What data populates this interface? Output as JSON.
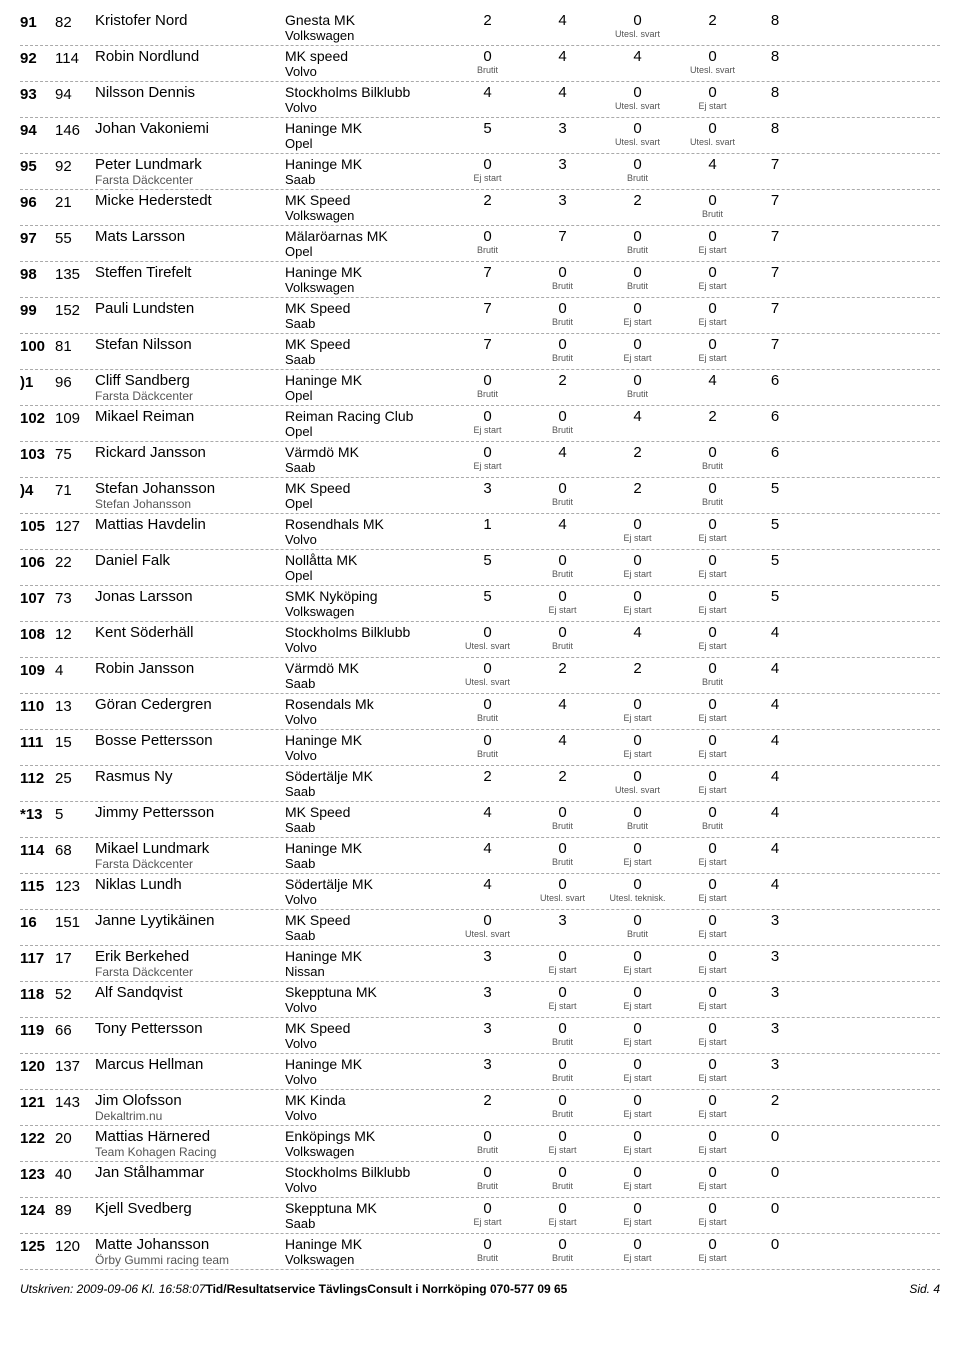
{
  "rows": [
    {
      "rank": "91",
      "num": "82",
      "name": "Kristofer Nord",
      "sub": "",
      "club": "Gnesta MK",
      "vehicle": "Volkswagen",
      "s1": "2",
      "n1": "",
      "s2": "4",
      "n2": "",
      "s3": "0",
      "n3": "Utesl. svart",
      "s4": "2",
      "n4": "",
      "total": "8"
    },
    {
      "rank": "92",
      "num": "114",
      "name": "Robin Nordlund",
      "sub": "",
      "club": "MK speed",
      "vehicle": "Volvo",
      "s1": "0",
      "n1": "Brutit",
      "s2": "4",
      "n2": "",
      "s3": "4",
      "n3": "",
      "s4": "0",
      "n4": "Utesl. svart",
      "total": "8"
    },
    {
      "rank": "93",
      "num": "94",
      "name": "Nilsson Dennis",
      "sub": "",
      "club": "Stockholms Bilklubb",
      "vehicle": "Volvo",
      "s1": "4",
      "n1": "",
      "s2": "4",
      "n2": "",
      "s3": "0",
      "n3": "Utesl. svart",
      "s4": "0",
      "n4": "Ej start",
      "total": "8"
    },
    {
      "rank": "94",
      "num": "146",
      "name": "Johan Vakoniemi",
      "sub": "",
      "club": "Haninge MK",
      "vehicle": "Opel",
      "s1": "5",
      "n1": "",
      "s2": "3",
      "n2": "",
      "s3": "0",
      "n3": "Utesl. svart",
      "s4": "0",
      "n4": "Utesl. svart",
      "total": "8"
    },
    {
      "rank": "95",
      "num": "92",
      "name": "Peter Lundmark",
      "sub": "Farsta Däckcenter",
      "club": "Haninge MK",
      "vehicle": "Saab",
      "s1": "0",
      "n1": "Ej start",
      "s2": "3",
      "n2": "",
      "s3": "0",
      "n3": "Brutit",
      "s4": "4",
      "n4": "",
      "total": "7"
    },
    {
      "rank": "96",
      "num": "21",
      "name": "Micke Hederstedt",
      "sub": "",
      "club": "MK Speed",
      "vehicle": "Volkswagen",
      "s1": "2",
      "n1": "",
      "s2": "3",
      "n2": "",
      "s3": "2",
      "n3": "",
      "s4": "0",
      "n4": "Brutit",
      "total": "7"
    },
    {
      "rank": "97",
      "num": "55",
      "name": "Mats Larsson",
      "sub": "",
      "club": "Mälaröarnas MK",
      "vehicle": "Opel",
      "s1": "0",
      "n1": "Brutit",
      "s2": "7",
      "n2": "",
      "s3": "0",
      "n3": "Brutit",
      "s4": "0",
      "n4": "Ej start",
      "total": "7"
    },
    {
      "rank": "98",
      "num": "135",
      "name": "Steffen Tirefelt",
      "sub": "",
      "club": "Haninge MK",
      "vehicle": "Volkswagen",
      "s1": "7",
      "n1": "",
      "s2": "0",
      "n2": "Brutit",
      "s3": "0",
      "n3": "Brutit",
      "s4": "0",
      "n4": "Ej start",
      "total": "7"
    },
    {
      "rank": "99",
      "num": "152",
      "name": "Pauli Lundsten",
      "sub": "",
      "club": "MK Speed",
      "vehicle": "Saab",
      "s1": "7",
      "n1": "",
      "s2": "0",
      "n2": "Brutit",
      "s3": "0",
      "n3": "Ej start",
      "s4": "0",
      "n4": "Ej start",
      "total": "7"
    },
    {
      "rank": "100",
      "num": "81",
      "name": "Stefan Nilsson",
      "sub": "",
      "club": "MK Speed",
      "vehicle": "Saab",
      "s1": "7",
      "n1": "",
      "s2": "0",
      "n2": "Brutit",
      "s3": "0",
      "n3": "Ej start",
      "s4": "0",
      "n4": "Ej start",
      "total": "7"
    },
    {
      "rank": ")1",
      "num": "96",
      "name": "Cliff Sandberg",
      "sub": "Farsta Däckcenter",
      "club": "Haninge MK",
      "vehicle": "Opel",
      "s1": "0",
      "n1": "Brutit",
      "s2": "2",
      "n2": "",
      "s3": "0",
      "n3": "Brutit",
      "s4": "4",
      "n4": "",
      "total": "6"
    },
    {
      "rank": "102",
      "num": "109",
      "name": "Mikael Reiman",
      "sub": "",
      "club": "Reiman Racing Club",
      "vehicle": "Opel",
      "s1": "0",
      "n1": "Ej start",
      "s2": "0",
      "n2": "Brutit",
      "s3": "4",
      "n3": "",
      "s4": "2",
      "n4": "",
      "total": "6"
    },
    {
      "rank": "103",
      "num": "75",
      "name": "Rickard Jansson",
      "sub": "",
      "club": "Värmdö MK",
      "vehicle": "Saab",
      "s1": "0",
      "n1": "Ej start",
      "s2": "4",
      "n2": "",
      "s3": "2",
      "n3": "",
      "s4": "0",
      "n4": "Brutit",
      "total": "6"
    },
    {
      "rank": ")4",
      "num": "71",
      "name": "Stefan Johansson",
      "sub": "Stefan Johansson",
      "club": "MK Speed",
      "vehicle": "Opel",
      "s1": "3",
      "n1": "",
      "s2": "0",
      "n2": "Brutit",
      "s3": "2",
      "n3": "",
      "s4": "0",
      "n4": "Brutit",
      "total": "5"
    },
    {
      "rank": "105",
      "num": "127",
      "name": "Mattias Havdelin",
      "sub": "",
      "club": "Rosendhals MK",
      "vehicle": "Volvo",
      "s1": "1",
      "n1": "",
      "s2": "4",
      "n2": "",
      "s3": "0",
      "n3": "Ej start",
      "s4": "0",
      "n4": "Ej start",
      "total": "5"
    },
    {
      "rank": "106",
      "num": "22",
      "name": "Daniel Falk",
      "sub": "",
      "club": "Nollåtta MK",
      "vehicle": "Opel",
      "s1": "5",
      "n1": "",
      "s2": "0",
      "n2": "Brutit",
      "s3": "0",
      "n3": "Ej start",
      "s4": "0",
      "n4": "Ej start",
      "total": "5"
    },
    {
      "rank": "107",
      "num": "73",
      "name": "Jonas Larsson",
      "sub": "",
      "club": "SMK Nyköping",
      "vehicle": "Volkswagen",
      "s1": "5",
      "n1": "",
      "s2": "0",
      "n2": "Ej start",
      "s3": "0",
      "n3": "Ej start",
      "s4": "0",
      "n4": "Ej start",
      "total": "5"
    },
    {
      "rank": "108",
      "num": "12",
      "name": "Kent Söderhäll",
      "sub": "",
      "club": "Stockholms Bilklubb",
      "vehicle": "Volvo",
      "s1": "0",
      "n1": "Utesl. svart",
      "s2": "0",
      "n2": "Brutit",
      "s3": "4",
      "n3": "",
      "s4": "0",
      "n4": "Ej start",
      "total": "4"
    },
    {
      "rank": "109",
      "num": "4",
      "name": "Robin Jansson",
      "sub": "",
      "club": "Värmdö MK",
      "vehicle": "Saab",
      "s1": "0",
      "n1": "Utesl. svart",
      "s2": "2",
      "n2": "",
      "s3": "2",
      "n3": "",
      "s4": "0",
      "n4": "Brutit",
      "total": "4"
    },
    {
      "rank": "110",
      "num": "13",
      "name": "Göran Cedergren",
      "sub": "",
      "club": "Rosendals Mk",
      "vehicle": "Volvo",
      "s1": "0",
      "n1": "Brutit",
      "s2": "4",
      "n2": "",
      "s3": "0",
      "n3": "Ej start",
      "s4": "0",
      "n4": "Ej start",
      "total": "4"
    },
    {
      "rank": "111",
      "num": "15",
      "name": "Bosse Pettersson",
      "sub": "",
      "club": "Haninge MK",
      "vehicle": "Volvo",
      "s1": "0",
      "n1": "Brutit",
      "s2": "4",
      "n2": "",
      "s3": "0",
      "n3": "Ej start",
      "s4": "0",
      "n4": "Ej start",
      "total": "4"
    },
    {
      "rank": "112",
      "num": "25",
      "name": "Rasmus Ny",
      "sub": "",
      "club": "Södertälje MK",
      "vehicle": "Saab",
      "s1": "2",
      "n1": "",
      "s2": "2",
      "n2": "",
      "s3": "0",
      "n3": "Utesl. svart",
      "s4": "0",
      "n4": "Ej start",
      "total": "4"
    },
    {
      "rank": "*13",
      "num": "5",
      "name": "Jimmy Pettersson",
      "sub": "",
      "club": "MK Speed",
      "vehicle": "Saab",
      "s1": "4",
      "n1": "",
      "s2": "0",
      "n2": "Brutit",
      "s3": "0",
      "n3": "Brutit",
      "s4": "0",
      "n4": "Brutit",
      "total": "4"
    },
    {
      "rank": "114",
      "num": "68",
      "name": "Mikael Lundmark",
      "sub": "Farsta Däckcenter",
      "club": "Haninge MK",
      "vehicle": "Saab",
      "s1": "4",
      "n1": "",
      "s2": "0",
      "n2": "Brutit",
      "s3": "0",
      "n3": "Ej start",
      "s4": "0",
      "n4": "Ej start",
      "total": "4"
    },
    {
      "rank": "115",
      "num": "123",
      "name": "Niklas Lundh",
      "sub": "",
      "club": "Södertälje MK",
      "vehicle": "Volvo",
      "s1": "4",
      "n1": "",
      "s2": "0",
      "n2": "Utesl. svart",
      "s3": "0",
      "n3": "Utesl. teknisk.",
      "s4": "0",
      "n4": "Ej start",
      "total": "4"
    },
    {
      "rank": "16",
      "num": "151",
      "name": "Janne Lyytikäinen",
      "sub": "",
      "club": "MK Speed",
      "vehicle": "Saab",
      "s1": "0",
      "n1": "Utesl. svart",
      "s2": "3",
      "n2": "",
      "s3": "0",
      "n3": "Brutit",
      "s4": "0",
      "n4": "Ej start",
      "total": "3"
    },
    {
      "rank": "117",
      "num": "17",
      "name": "Erik Berkehed",
      "sub": "Farsta Däckcenter",
      "club": "Haninge MK",
      "vehicle": "Nissan",
      "s1": "3",
      "n1": "",
      "s2": "0",
      "n2": "Ej start",
      "s3": "0",
      "n3": "Ej start",
      "s4": "0",
      "n4": "Ej start",
      "total": "3"
    },
    {
      "rank": "118",
      "num": "52",
      "name": "Alf Sandqvist",
      "sub": "",
      "club": "Skepptuna MK",
      "vehicle": "Volvo",
      "s1": "3",
      "n1": "",
      "s2": "0",
      "n2": "Ej start",
      "s3": "0",
      "n3": "Ej start",
      "s4": "0",
      "n4": "Ej start",
      "total": "3"
    },
    {
      "rank": "119",
      "num": "66",
      "name": "Tony Pettersson",
      "sub": "",
      "club": "MK Speed",
      "vehicle": "Volvo",
      "s1": "3",
      "n1": "",
      "s2": "0",
      "n2": "Brutit",
      "s3": "0",
      "n3": "Ej start",
      "s4": "0",
      "n4": "Ej start",
      "total": "3"
    },
    {
      "rank": "120",
      "num": "137",
      "name": "Marcus Hellman",
      "sub": "",
      "club": "Haninge MK",
      "vehicle": "Volvo",
      "s1": "3",
      "n1": "",
      "s2": "0",
      "n2": "Brutit",
      "s3": "0",
      "n3": "Ej start",
      "s4": "0",
      "n4": "Ej start",
      "total": "3"
    },
    {
      "rank": "121",
      "num": "143",
      "name": "Jim Olofsson",
      "sub": "Dekaltrim.nu",
      "club": "MK Kinda",
      "vehicle": "Volvo",
      "s1": "2",
      "n1": "",
      "s2": "0",
      "n2": "Brutit",
      "s3": "0",
      "n3": "Ej start",
      "s4": "0",
      "n4": "Ej start",
      "total": "2"
    },
    {
      "rank": "122",
      "num": "20",
      "name": "Mattias Härnered",
      "sub": "Team Kohagen Racing",
      "club": "Enköpings MK",
      "vehicle": "Volkswagen",
      "s1": "0",
      "n1": "Brutit",
      "s2": "0",
      "n2": "Ej start",
      "s3": "0",
      "n3": "Ej start",
      "s4": "0",
      "n4": "Ej start",
      "total": "0"
    },
    {
      "rank": "123",
      "num": "40",
      "name": "Jan Stålhammar",
      "sub": "",
      "club": "Stockholms Bilklubb",
      "vehicle": "Volvo",
      "s1": "0",
      "n1": "Brutit",
      "s2": "0",
      "n2": "Brutit",
      "s3": "0",
      "n3": "Ej start",
      "s4": "0",
      "n4": "Ej start",
      "total": "0"
    },
    {
      "rank": "124",
      "num": "89",
      "name": "Kjell Svedberg",
      "sub": "",
      "club": "Skepptuna MK",
      "vehicle": "Saab",
      "s1": "0",
      "n1": "Ej start",
      "s2": "0",
      "n2": "Ej start",
      "s3": "0",
      "n3": "Ej start",
      "s4": "0",
      "n4": "Ej start",
      "total": "0"
    },
    {
      "rank": "125",
      "num": "120",
      "name": "Matte Johansson",
      "sub": "Örby Gummi racing team",
      "club": "Haninge MK",
      "vehicle": "Volkswagen",
      "s1": "0",
      "n1": "Brutit",
      "s2": "0",
      "n2": "Brutit",
      "s3": "0",
      "n3": "Ej start",
      "s4": "0",
      "n4": "Ej start",
      "total": "0"
    }
  ],
  "footer": {
    "left": "Utskriven: 2009-09-06 Kl. 16:58:07",
    "mid": "Tid/Resultatservice TävlingsConsult i Norrköping 070-577 09 65",
    "right": "Sid. 4"
  }
}
